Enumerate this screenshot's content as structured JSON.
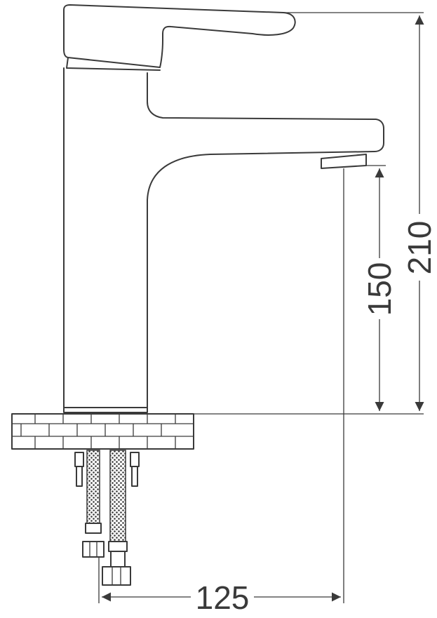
{
  "dimensions": {
    "total_height": "210",
    "spout_height": "150",
    "reach": "125"
  },
  "colors": {
    "line": "#3a3a3a",
    "background": "#ffffff"
  }
}
